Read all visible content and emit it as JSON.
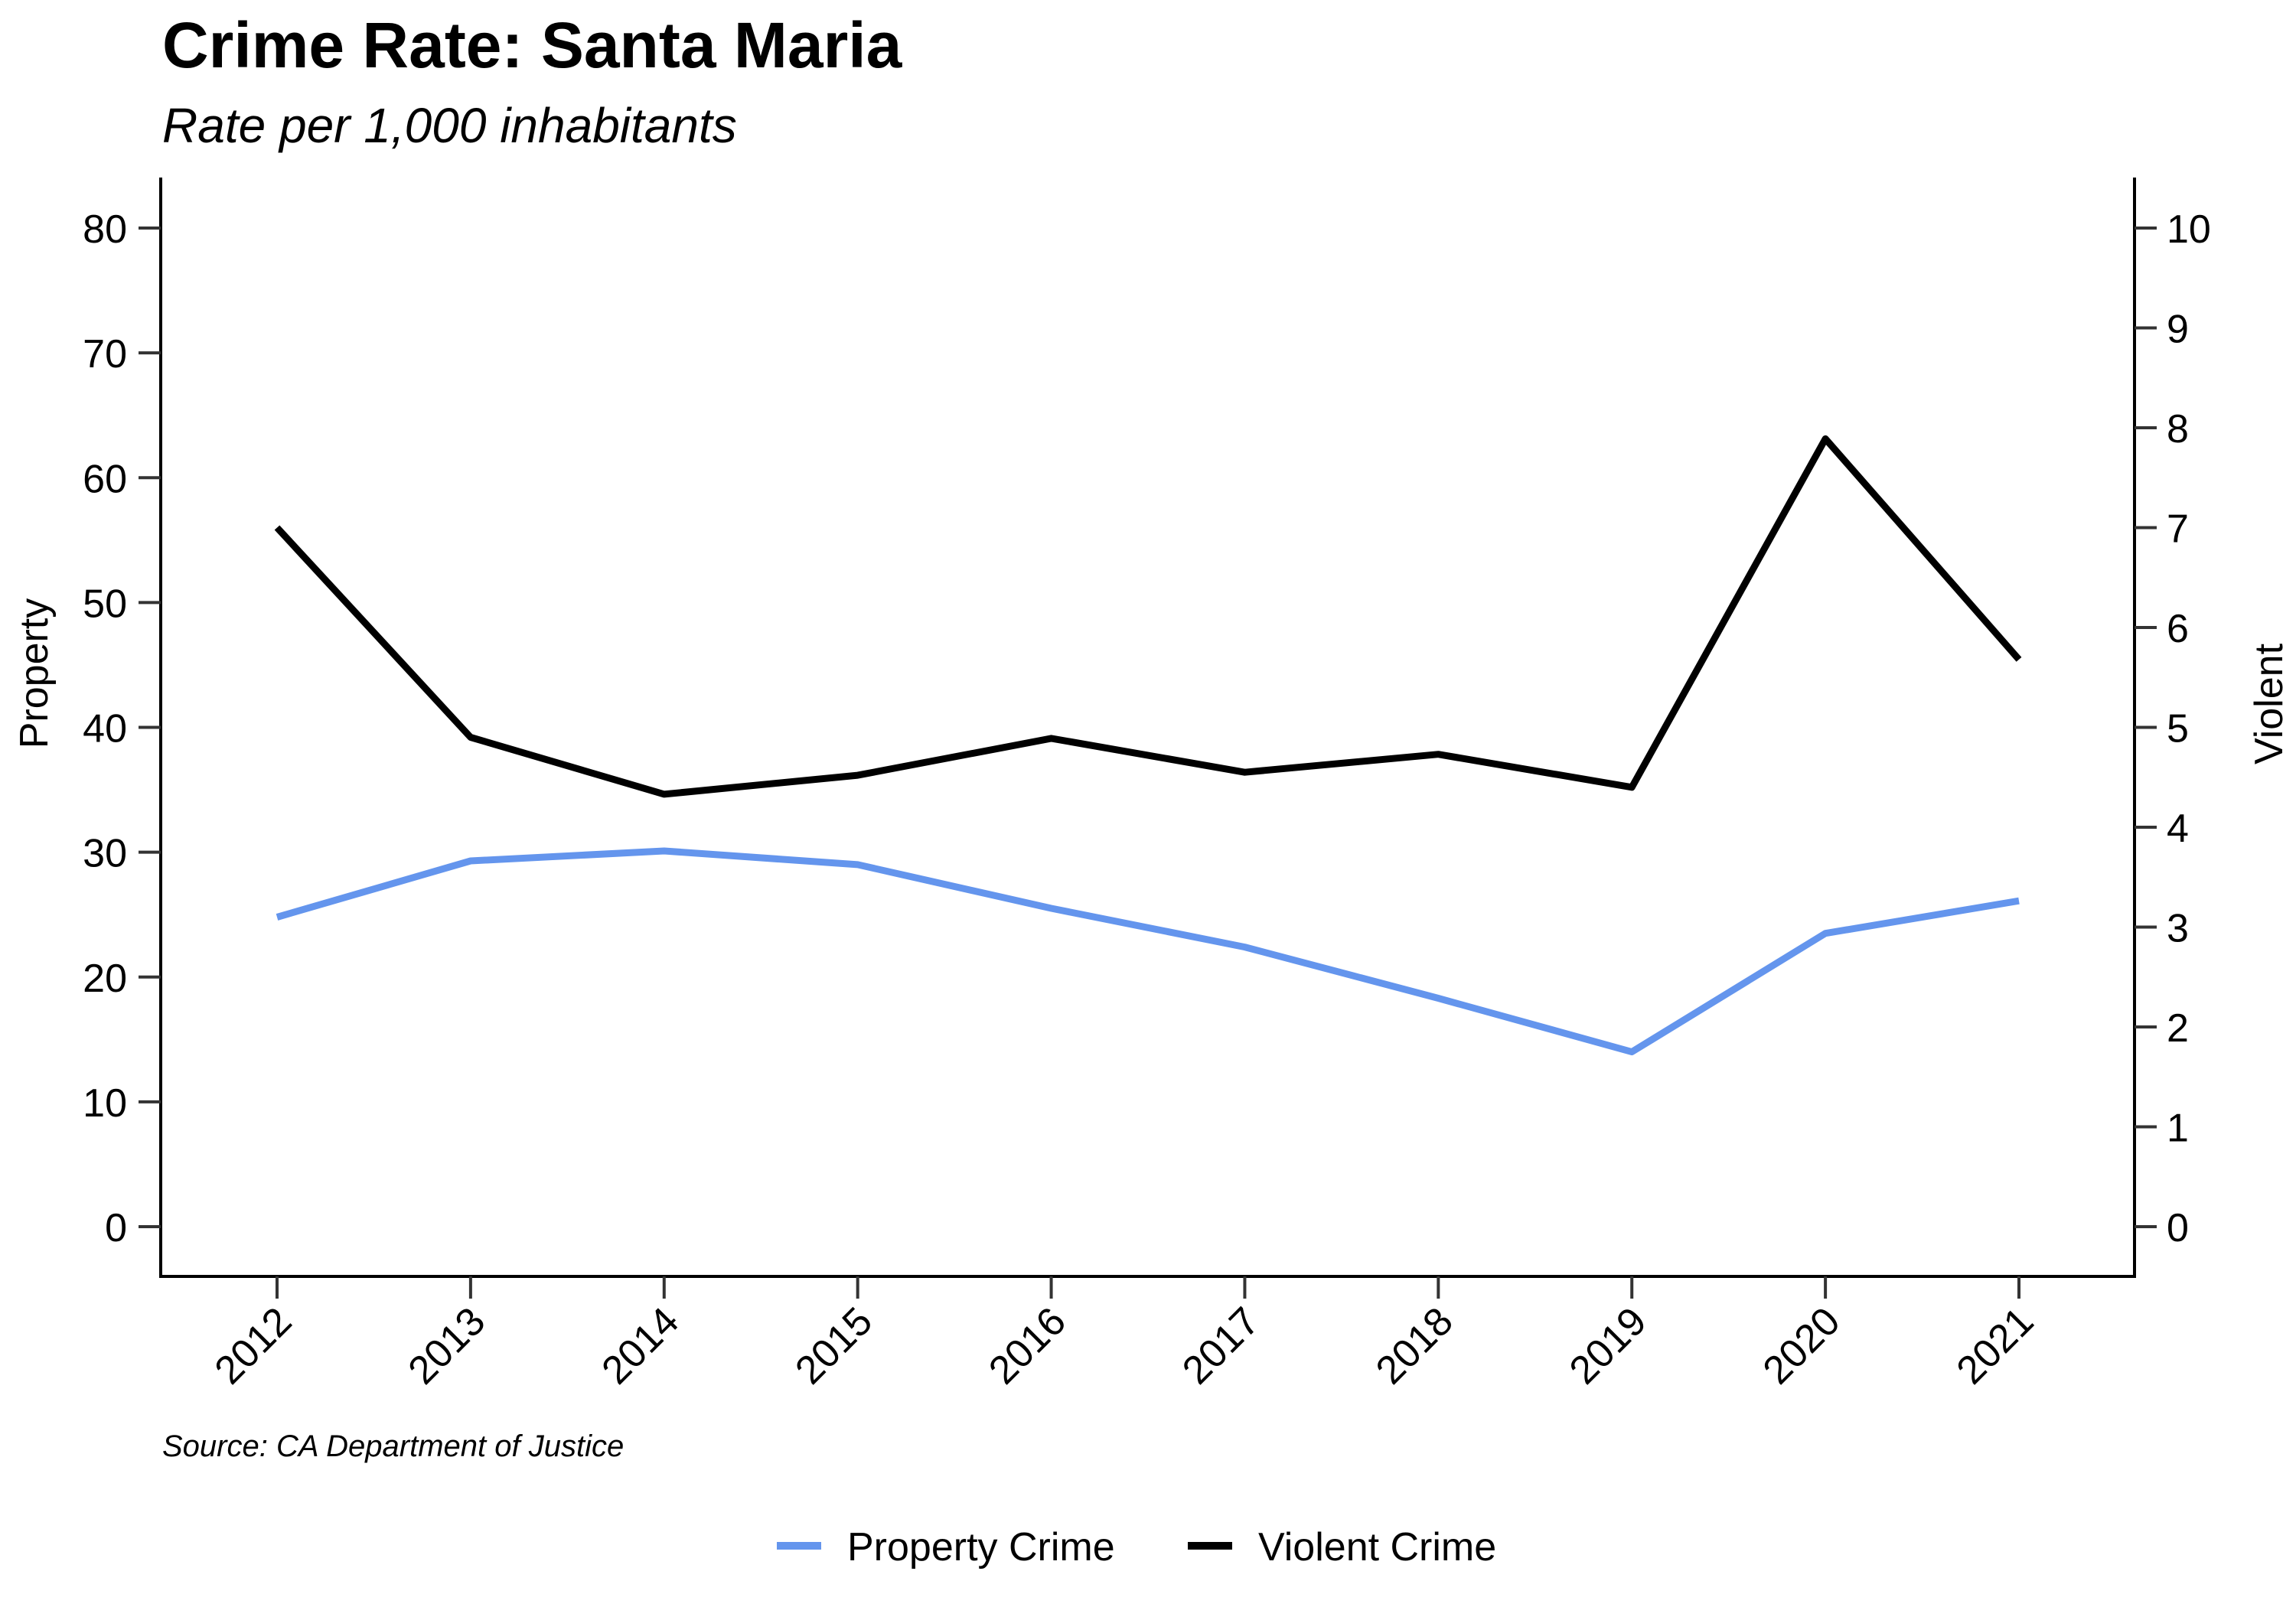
{
  "chart_data": {
    "type": "line",
    "title": "Crime Rate: Santa Maria",
    "subtitle": "Rate per 1,000 inhabitants",
    "source": "Source: CA Department of Justice",
    "x": [
      "2012",
      "2013",
      "2014",
      "2015",
      "2016",
      "2017",
      "2018",
      "2019",
      "2020",
      "2021"
    ],
    "xlabel": "",
    "y_left": {
      "label": "Property",
      "ticks": [
        0,
        10,
        20,
        30,
        40,
        50,
        60,
        70,
        80
      ],
      "range": [
        0,
        80
      ]
    },
    "y_right": {
      "label": "Violent",
      "ticks": [
        0,
        1,
        2,
        3,
        4,
        5,
        6,
        7,
        8,
        9,
        10
      ],
      "range": [
        0,
        10
      ]
    },
    "grid": false,
    "legend_position": "bottom",
    "series": [
      {
        "name": "Property Crime",
        "axis": "left",
        "color": "#6495ED",
        "values": [
          24.8,
          29.3,
          30.1,
          29.0,
          25.5,
          22.4,
          18.3,
          14.0,
          23.5,
          26.1
        ]
      },
      {
        "name": "Violent Crime",
        "axis": "right",
        "color": "#000000",
        "values": [
          7.0,
          4.9,
          4.33,
          4.52,
          4.89,
          4.55,
          4.73,
          4.4,
          7.89,
          5.68
        ]
      }
    ]
  }
}
